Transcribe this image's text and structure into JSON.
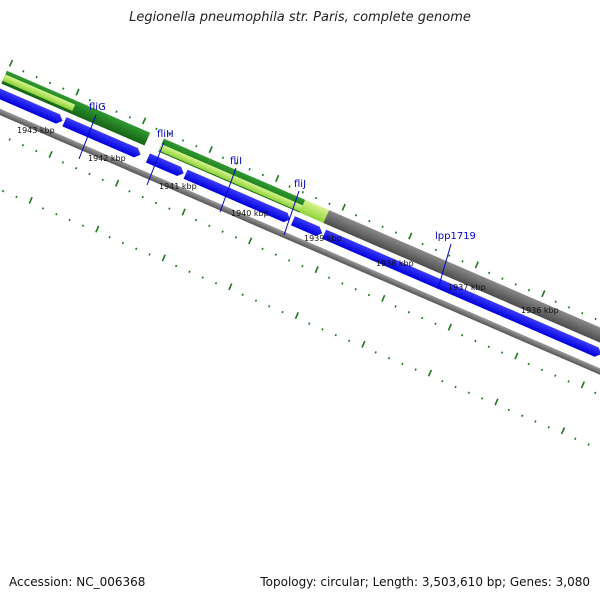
{
  "title": "Legionella pneumophila str. Paris, complete genome",
  "footer": {
    "accession": "Accession: NC_006368",
    "summary": "Topology: circular; Length: 3,503,610 bp; Genes: 3,080"
  },
  "colors": {
    "background": "#ffffff",
    "forward_gene": "#0000ff",
    "backbone": "#777777",
    "tick": "#1a7a1a",
    "gene_label": "#0000cc",
    "dark_green": "#1f7a1f",
    "light_green": "#a8e64a",
    "gray_feature": "#666666"
  },
  "position_labels": [
    "1943 kbp",
    "1942 kbp",
    "1941 kbp",
    "1940 kbp",
    "1939 kbp",
    "1938 kbp",
    "1937 kbp",
    "1936 kbp"
  ],
  "gene_labels": [
    "fliG",
    "fliH",
    "fliI",
    "fliJ",
    "lpp1719"
  ]
}
